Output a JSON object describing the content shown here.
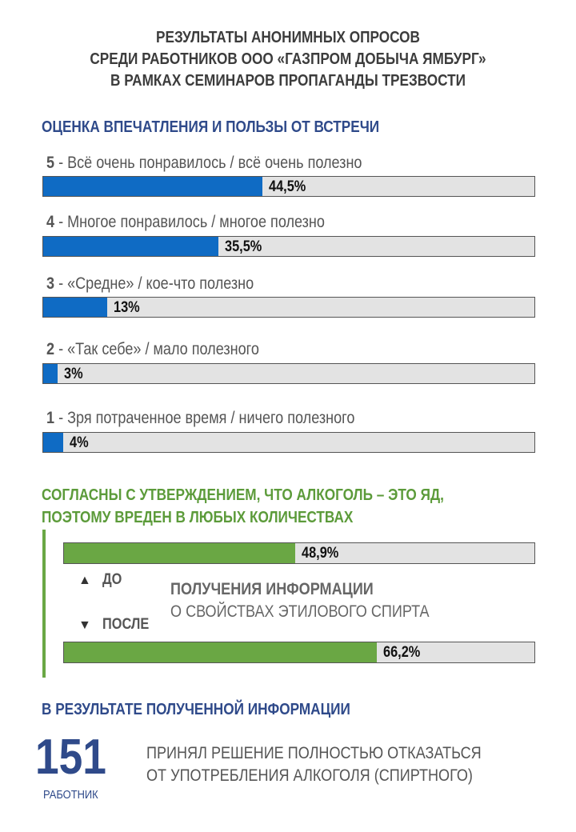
{
  "title": {
    "line1": "РЕЗУЛЬТАТЫ АНОНИМНЫХ ОПРОСОВ",
    "line2": "СРЕДИ РАБОТНИКОВ ООО «ГАЗПРОМ ДОБЫЧА ЯМБУРГ»",
    "line3": "В РАМКАХ СЕМИНАРОВ ПРОПАГАНДЫ ТРЕЗВОСТИ"
  },
  "section1": {
    "heading": "ОЦЕНКА ВПЕЧАТЛЕНИЯ И ПОЛЬЗЫ ОТ ВСТРЕЧИ"
  },
  "section2": {
    "heading_line1": "СОГЛАСНЫ С УТВЕРЖДЕНИЕМ, ЧТО АЛКОГОЛЬ – ЭТО ЯД,",
    "heading_line2": "ПОЭТОМУ ВРЕДЕН В ЛЮБЫХ КОЛИЧЕСТВАХ",
    "before_label": "ДО",
    "after_label": "ПОСЛЕ",
    "info_line1": "ПОЛУЧЕНИЯ ИНФОРМАЦИИ",
    "info_line2": "О СВОЙСТВАХ ЭТИЛОВОГО СПИРТА"
  },
  "section3": {
    "heading": "В РЕЗУЛЬТАТЕ ПОЛУЧЕННОЙ ИНФОРМАЦИИ",
    "number": "151",
    "number_caption": "РАБОТНИК",
    "decision_line1": "ПРИНЯЛ РЕШЕНИЕ ПОЛНОСТЬЮ ОТКАЗАТЬСЯ",
    "decision_line2": "ОТ УПОТРЕБЛЕНИЯ АЛКОГОЛЯ (СПИРТНОГО)"
  },
  "colors": {
    "blue_fill": "#0f6bc4",
    "green_fill": "#6aa744",
    "heading_blue": "#2f4a8a",
    "heading_green": "#5c9b3a",
    "track": "#e3e3e3"
  },
  "chart_data": [
    {
      "type": "bar",
      "orientation": "horizontal",
      "title": "ОЦЕНКА ВПЕЧАТЛЕНИЯ И ПОЛЬЗЫ ОТ ВСТРЕЧИ",
      "xlim": [
        0,
        100
      ],
      "categories": [
        {
          "score": "5",
          "text": " - Всё очень понравилось / всё очень полезно"
        },
        {
          "score": "4",
          "text": " - Многое понравилось / многое полезно"
        },
        {
          "score": "3",
          "text": " - «Средне» / кое-что полезно"
        },
        {
          "score": "2",
          "text": " - «Так себе» / мало полезного"
        },
        {
          "score": "1",
          "text": " - Зря потраченное время / ничего полезного"
        }
      ],
      "values": [
        44.5,
        35.5,
        13,
        3,
        4
      ],
      "value_labels": [
        "44,5%",
        "35,5%",
        "13%",
        "3%",
        "4%"
      ]
    },
    {
      "type": "bar",
      "orientation": "horizontal",
      "title": "СОГЛАСНЫ С УТВЕРЖДЕНИЕМ, ЧТО АЛКОГОЛЬ – ЭТО ЯД, ПОЭТОМУ ВРЕДЕН В ЛЮБЫХ КОЛИЧЕСТВАХ",
      "xlim": [
        0,
        100
      ],
      "categories": [
        "ДО",
        "ПОСЛЕ"
      ],
      "values": [
        48.9,
        66.2
      ],
      "value_labels": [
        "48,9%",
        "66,2%"
      ]
    }
  ]
}
